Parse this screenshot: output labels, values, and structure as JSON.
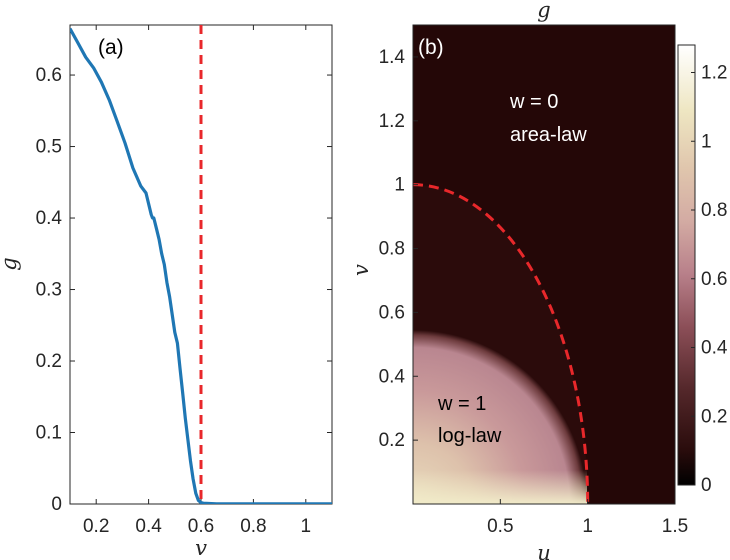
{
  "chart_data": [
    {
      "type": "line",
      "panel_label": "(a)",
      "xlabel": "v",
      "ylabel": "g",
      "xlim": [
        0.1,
        1.1
      ],
      "ylim": [
        0,
        0.67
      ],
      "xticks": [
        "0.2",
        "0.4",
        "0.6",
        "0.8",
        "1"
      ],
      "yticks": [
        "0",
        "0.1",
        "0.2",
        "0.3",
        "0.4",
        "0.5",
        "0.6"
      ],
      "line_color": "#1f77b4",
      "series": [
        {
          "x": [
            0.1,
            0.13,
            0.16,
            0.19,
            0.22,
            0.25,
            0.28,
            0.31,
            0.34,
            0.37,
            0.39,
            0.4,
            0.41,
            0.415,
            0.42,
            0.43,
            0.44,
            0.45,
            0.46,
            0.47,
            0.48,
            0.49,
            0.5,
            0.51,
            0.52,
            0.53,
            0.54,
            0.55,
            0.56,
            0.57,
            0.58,
            0.59,
            0.6,
            0.61,
            0.62,
            0.64,
            0.66,
            0.7,
            0.8,
            0.9,
            1.0,
            1.1
          ],
          "y": [
            0.665,
            0.645,
            0.625,
            0.61,
            0.59,
            0.565,
            0.535,
            0.505,
            0.47,
            0.445,
            0.435,
            0.42,
            0.405,
            0.4,
            0.4,
            0.385,
            0.37,
            0.35,
            0.335,
            0.31,
            0.29,
            0.265,
            0.24,
            0.225,
            0.19,
            0.155,
            0.12,
            0.09,
            0.06,
            0.035,
            0.015,
            0.005,
            0.002,
            0.001,
            0.001,
            0.0005,
            0.0003,
            0.0002,
            0.0001,
            0.0001,
            0.0001,
            0.0001
          ]
        }
      ],
      "transition_line": {
        "x": 0.6,
        "color": "#e8282b",
        "style": "dashed"
      }
    },
    {
      "type": "heatmap",
      "panel_label": "(b)",
      "title": "g",
      "xlabel": "u",
      "ylabel": "v",
      "xlim": [
        0,
        1.5
      ],
      "ylim": [
        0,
        1.5
      ],
      "xticks": [
        "0.5",
        "1",
        "1.5"
      ],
      "yticks": [
        "0.2",
        "0.4",
        "0.6",
        "0.8",
        "1",
        "1.2",
        "1.4"
      ],
      "colorbar_ticks": [
        "0",
        "0.2",
        "0.4",
        "0.6",
        "0.8",
        "1",
        "1.2"
      ],
      "colorbar_range": [
        0,
        1.28
      ],
      "colormap": [
        "#000000",
        "#3b0f0f",
        "#7a3e44",
        "#b4727d",
        "#d6a7a0",
        "#e4cfb0",
        "#f2eecb",
        "#ffffff"
      ],
      "boundary": {
        "shape": "quarter-circle",
        "radius": 1.0,
        "color": "#e8282b",
        "style": "dashed"
      },
      "annotations": [
        {
          "lines": [
            "w = 0",
            "area-law"
          ],
          "at_u": 0.6,
          "at_v": 1.27
        },
        {
          "lines": [
            "w = 1",
            "log-law"
          ],
          "at_u": 0.12,
          "at_v": 0.28
        }
      ]
    }
  ]
}
